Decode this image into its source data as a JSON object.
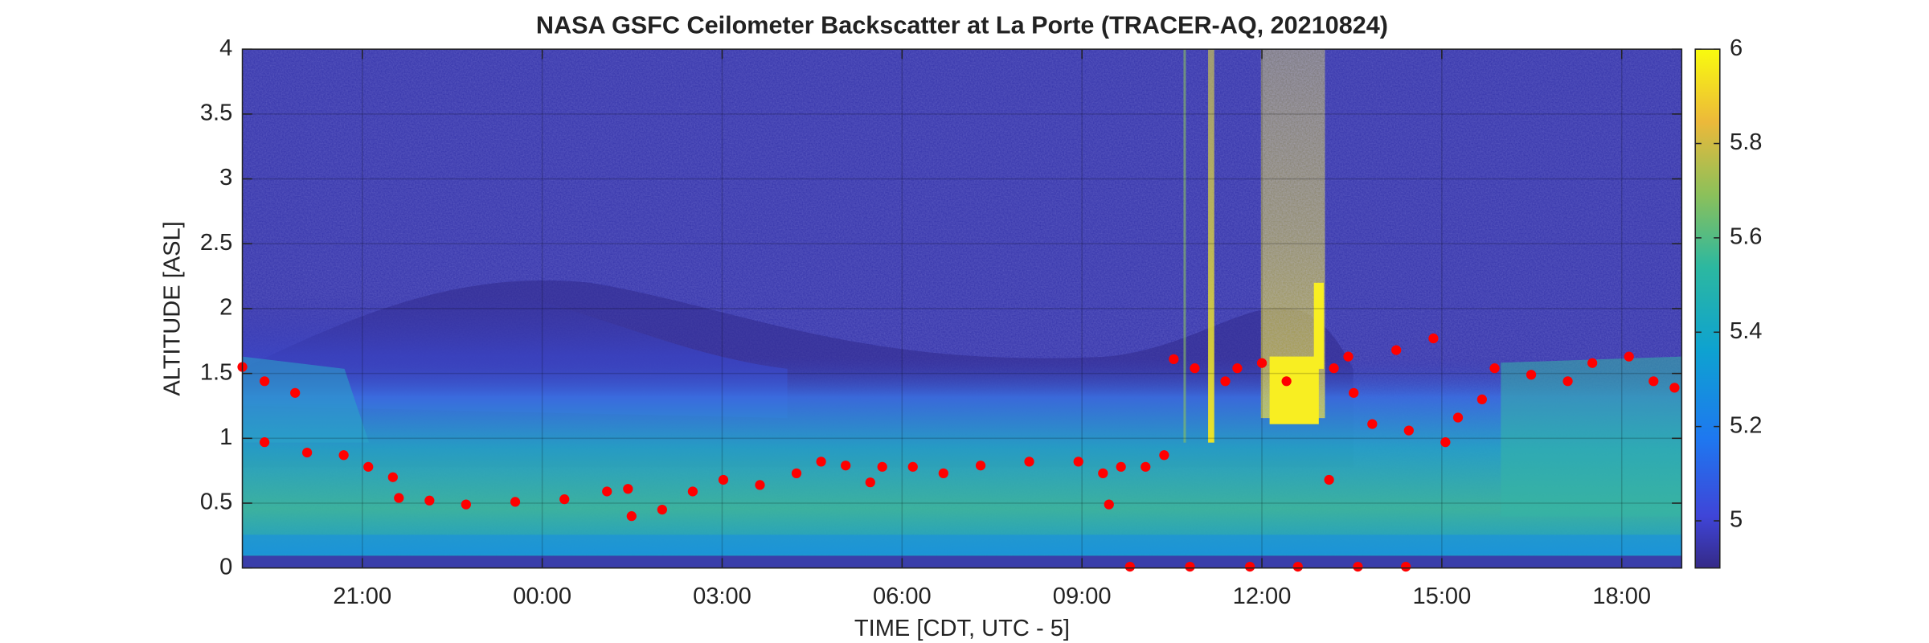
{
  "chart_data": {
    "type": "scatter",
    "title": "NASA GSFC Ceilometer Backscatter at La Porte (TRACER-AQ, 20210824)",
    "x_label": "TIME [CDT, UTC - 5]",
    "y_label": "ALTITUDE [ASL]",
    "xlim": [
      0,
      24
    ],
    "xticks": [
      {
        "value": 2,
        "label": "21:00"
      },
      {
        "value": 5,
        "label": "00:00"
      },
      {
        "value": 8,
        "label": "03:00"
      },
      {
        "value": 11,
        "label": "06:00"
      },
      {
        "value": 14,
        "label": "09:00"
      },
      {
        "value": 17,
        "label": "12:00"
      },
      {
        "value": 20,
        "label": "15:00"
      },
      {
        "value": 23,
        "label": "18:00"
      }
    ],
    "ylim": [
      0,
      4
    ],
    "yticks": [
      0,
      0.5,
      1,
      1.5,
      2,
      2.5,
      3,
      3.5,
      4
    ],
    "grid": true,
    "color": "#ff0000",
    "x": [
      0,
      0.37,
      0.88,
      0.37,
      1.08,
      1.69,
      2.1,
      2.51,
      2.61,
      3.12,
      3.73,
      4.55,
      5.37,
      6.08,
      6.43,
      6.49,
      7.0,
      7.51,
      8.02,
      8.63,
      9.24,
      9.65,
      10.06,
      10.47,
      10.67,
      11.18,
      11.69,
      12.31,
      13.12,
      13.94,
      14.35,
      14.45,
      14.65,
      15.06,
      15.37,
      15.53,
      15.88,
      16.39,
      16.59,
      17.0,
      17.41,
      18.12,
      18.2,
      18.44,
      18.53,
      18.84,
      19.24,
      19.45,
      19.86,
      20.06,
      20.27,
      20.67,
      20.88,
      21.49,
      22.1,
      22.51,
      23.12,
      23.53,
      23.88,
      14.8,
      15.8,
      16.8,
      17.6,
      18.6,
      19.4
    ],
    "y": [
      1.55,
      1.44,
      1.35,
      0.97,
      0.89,
      0.87,
      0.78,
      0.7,
      0.54,
      0.52,
      0.49,
      0.51,
      0.53,
      0.59,
      0.61,
      0.4,
      0.45,
      0.59,
      0.68,
      0.64,
      0.73,
      0.82,
      0.79,
      0.66,
      0.78,
      0.78,
      0.73,
      0.79,
      0.82,
      0.82,
      0.73,
      0.49,
      0.78,
      0.78,
      0.87,
      1.61,
      1.54,
      1.44,
      1.54,
      1.58,
      1.44,
      0.68,
      1.54,
      1.63,
      1.35,
      1.11,
      1.68,
      1.06,
      1.77,
      0.97,
      1.16,
      1.3,
      1.54,
      1.49,
      1.44,
      1.58,
      1.63,
      1.44,
      1.39,
      0.01,
      0.01,
      0.01,
      0.01,
      0.01,
      0.01
    ],
    "colorbar": {
      "lim": [
        4.9,
        6
      ],
      "ticks": [
        5,
        5.2,
        5.4,
        5.6,
        5.8,
        6
      ]
    }
  }
}
